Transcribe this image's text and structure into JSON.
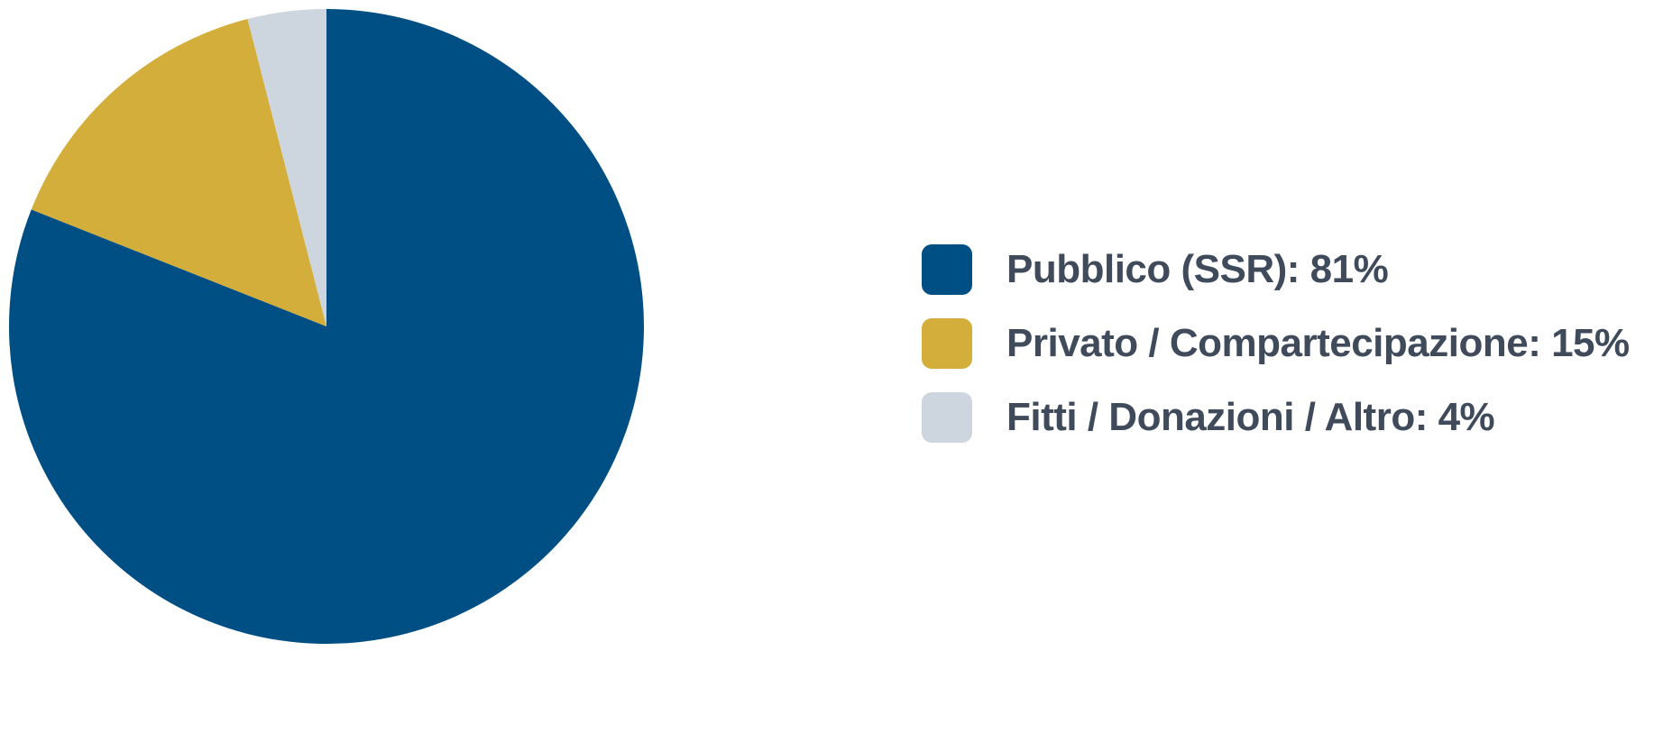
{
  "chart_data": {
    "type": "pie",
    "slices": [
      {
        "label": "Pubblico (SSR): 81%",
        "value": 81,
        "color": "#004f84"
      },
      {
        "label": "Privato / Compartecipazione: 15%",
        "value": 15,
        "color": "#d4ae3b"
      },
      {
        "label": "Fitti / Donazioni / Altro: 4%",
        "value": 4,
        "color": "#cdd5df"
      }
    ],
    "start_angle": "12 o'clock",
    "direction": "clockwise",
    "legend_position": "right"
  }
}
